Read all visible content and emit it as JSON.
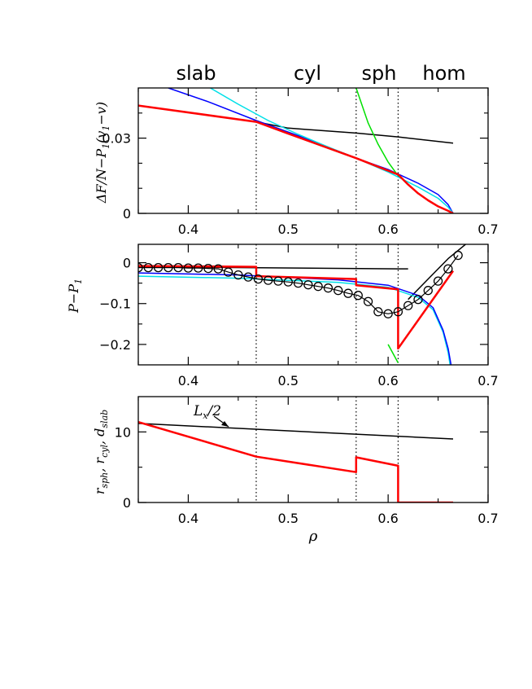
{
  "phase_labels": [
    "slab",
    "cyl",
    "sph",
    "hom"
  ],
  "xlabel": "ρ",
  "x_ticks": [
    "0.4",
    "0.5",
    "0.6",
    "0.7"
  ],
  "colors": {
    "black": "#000000",
    "blue": "#0000ff",
    "cyan": "#00e0e8",
    "green": "#00e000",
    "red": "#ff0000"
  },
  "chart_data": [
    {
      "type": "line",
      "ylabel": "ΔF/N−P₁(v₁−v)",
      "xlim": [
        0.35,
        0.7
      ],
      "ylim": [
        0,
        0.05
      ],
      "y_ticks": [
        "0",
        "0.03"
      ],
      "vlines": [
        0.468,
        0.568,
        0.61
      ],
      "series": [
        {
          "color": "black",
          "width": 1.5,
          "x": [
            0.35,
            0.468,
            0.5,
            0.568,
            0.61,
            0.665
          ],
          "y": [
            0.043,
            0.0365,
            0.034,
            0.032,
            0.0305,
            0.028
          ]
        },
        {
          "color": "blue",
          "width": 1.5,
          "x": [
            0.38,
            0.42,
            0.468,
            0.52,
            0.568,
            0.6,
            0.63,
            0.65,
            0.66,
            0.665
          ],
          "y": [
            0.05,
            0.0445,
            0.037,
            0.0295,
            0.022,
            0.0175,
            0.012,
            0.0075,
            0.0035,
            0
          ]
        },
        {
          "color": "cyan",
          "width": 1.5,
          "x": [
            0.422,
            0.45,
            0.48,
            0.51,
            0.54,
            0.568,
            0.6,
            0.63,
            0.65,
            0.66,
            0.665
          ],
          "y": [
            0.05,
            0.0435,
            0.037,
            0.0315,
            0.0265,
            0.022,
            0.0165,
            0.0105,
            0.006,
            0.0025,
            0
          ]
        },
        {
          "color": "green",
          "width": 1.5,
          "x": [
            0.568,
            0.58,
            0.59,
            0.6,
            0.61
          ],
          "y": [
            0.05,
            0.036,
            0.0275,
            0.0205,
            0.015
          ]
        },
        {
          "color": "red",
          "width": 2.5,
          "x": [
            0.35,
            0.468,
            0.5,
            0.568,
            0.61,
            0.62,
            0.63,
            0.64,
            0.65,
            0.66,
            0.665
          ],
          "y": [
            0.043,
            0.0365,
            0.0318,
            0.022,
            0.0155,
            0.0115,
            0.008,
            0.0052,
            0.0028,
            0.001,
            0
          ]
        }
      ]
    },
    {
      "type": "line",
      "ylabel": "P−P₁",
      "xlim": [
        0.35,
        0.7
      ],
      "ylim": [
        -0.25,
        0.045
      ],
      "y_ticks": [
        "0",
        "−0.1",
        "−0.2"
      ],
      "vlines": [
        0.468,
        0.568,
        0.61
      ],
      "series": [
        {
          "color": "black",
          "width": 1.5,
          "x": [
            0.35,
            0.61,
            0.62
          ],
          "y": [
            -0.01,
            -0.015,
            -0.015
          ]
        },
        {
          "color": "black",
          "width": 1.5,
          "x": [
            0.62,
            0.64,
            0.66,
            0.68
          ],
          "y": [
            -0.09,
            -0.04,
            0.01,
            0.05
          ]
        },
        {
          "color": "cyan",
          "width": 1.5,
          "x": [
            0.35,
            0.45,
            0.55,
            0.6,
            0.63,
            0.645,
            0.655,
            0.66,
            0.662
          ],
          "y": [
            -0.033,
            -0.038,
            -0.048,
            -0.06,
            -0.085,
            -0.115,
            -0.17,
            -0.22,
            -0.25
          ]
        },
        {
          "color": "blue",
          "width": 1.5,
          "x": [
            0.35,
            0.45,
            0.55,
            0.6,
            0.63,
            0.645,
            0.655,
            0.66,
            0.663
          ],
          "y": [
            -0.025,
            -0.03,
            -0.042,
            -0.055,
            -0.08,
            -0.11,
            -0.165,
            -0.21,
            -0.25
          ]
        },
        {
          "color": "green",
          "width": 1.5,
          "x": [
            0.6,
            0.61
          ],
          "y": [
            -0.2,
            -0.245
          ]
        },
        {
          "color": "red",
          "width": 2.5,
          "x": [
            0.35,
            0.468,
            0.468,
            0.568,
            0.568,
            0.61,
            0.61,
            0.665
          ],
          "y": [
            -0.008,
            -0.01,
            -0.033,
            -0.04,
            -0.055,
            -0.065,
            -0.21,
            -0.02
          ]
        },
        {
          "color": "black",
          "width": 1.2,
          "marker": "circle",
          "x": [
            0.35,
            0.36,
            0.37,
            0.38,
            0.39,
            0.4,
            0.41,
            0.42,
            0.43,
            0.44,
            0.45,
            0.46,
            0.47,
            0.48,
            0.49,
            0.5,
            0.51,
            0.52,
            0.53,
            0.54,
            0.55,
            0.56,
            0.57,
            0.58,
            0.59,
            0.6,
            0.61,
            0.62,
            0.63,
            0.64,
            0.65,
            0.66,
            0.67
          ],
          "y": [
            -0.012,
            -0.012,
            -0.012,
            -0.012,
            -0.012,
            -0.013,
            -0.013,
            -0.014,
            -0.015,
            -0.023,
            -0.03,
            -0.035,
            -0.04,
            -0.043,
            -0.045,
            -0.047,
            -0.05,
            -0.054,
            -0.058,
            -0.062,
            -0.068,
            -0.075,
            -0.08,
            -0.095,
            -0.12,
            -0.125,
            -0.12,
            -0.105,
            -0.09,
            -0.068,
            -0.045,
            -0.015,
            0.018
          ]
        }
      ]
    },
    {
      "type": "line",
      "ylabel": "r_sph, r_cyl, d_slab",
      "xlim": [
        0.35,
        0.7
      ],
      "ylim": [
        0,
        15
      ],
      "y_ticks": [
        "0",
        "10"
      ],
      "vlines": [
        0.468,
        0.568,
        0.61
      ],
      "annotation": "Lx/2",
      "series": [
        {
          "color": "black",
          "width": 1.5,
          "x": [
            0.35,
            0.665
          ],
          "y": [
            11.2,
            9
          ]
        },
        {
          "color": "red",
          "width": 2.5,
          "x": [
            0.35,
            0.468,
            0.568,
            0.568,
            0.61,
            0.61,
            0.665
          ],
          "y": [
            11.4,
            6.5,
            4.3,
            6.4,
            5.2,
            0,
            0
          ]
        }
      ]
    }
  ]
}
